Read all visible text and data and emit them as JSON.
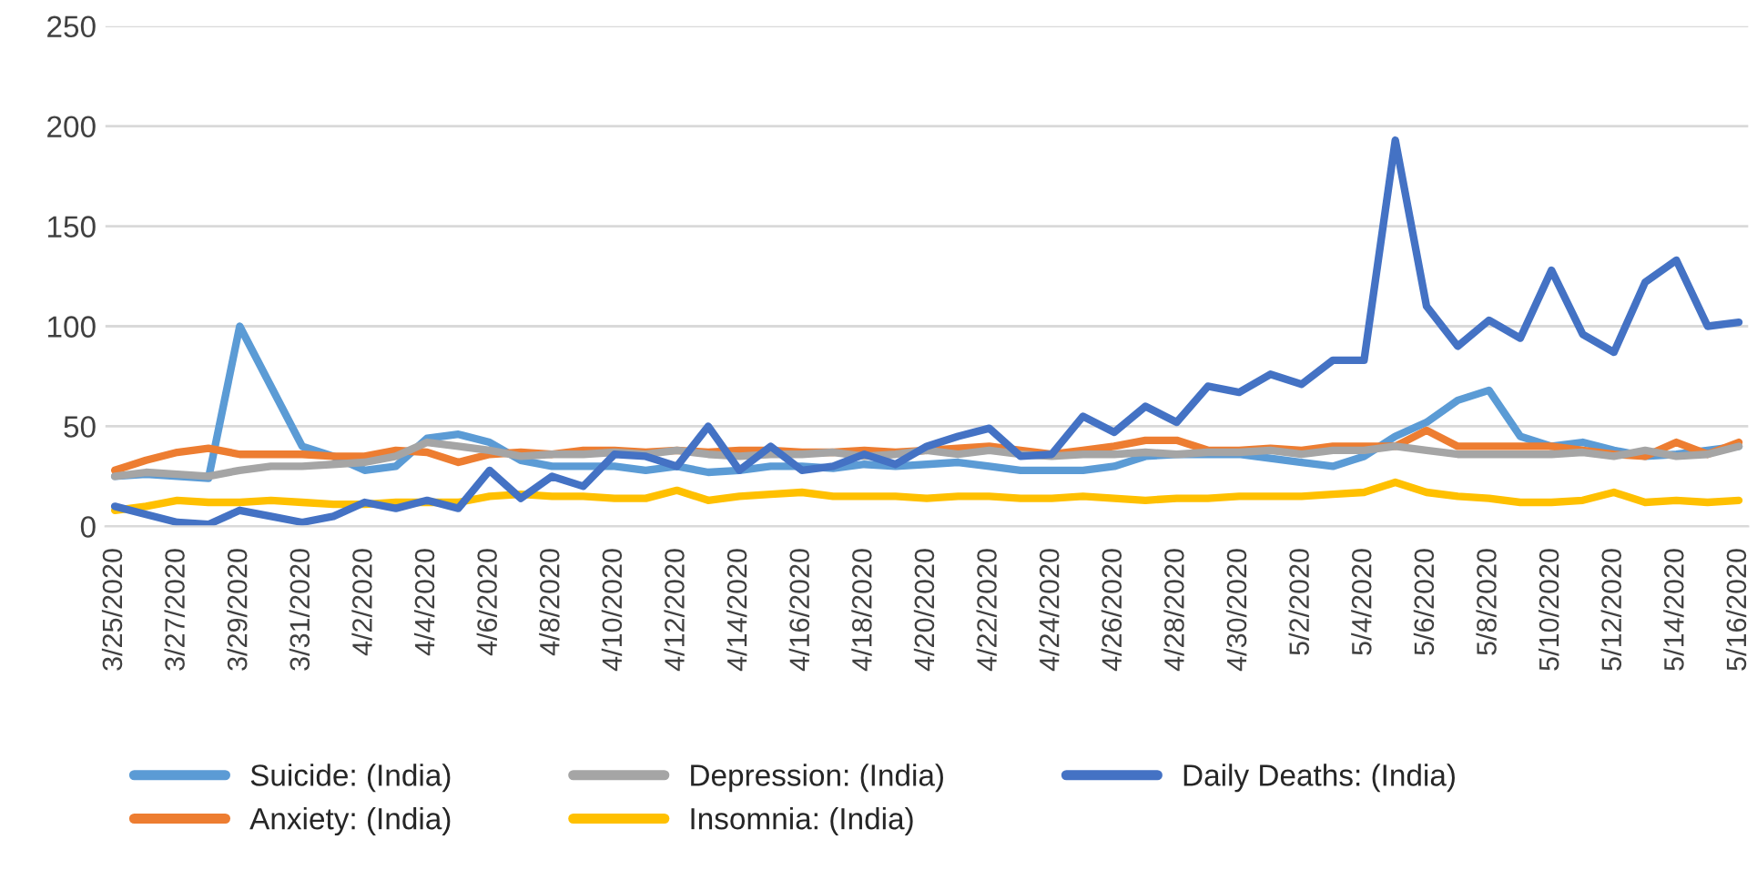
{
  "chart_data": {
    "type": "line",
    "categories": [
      "3/25/2020",
      null,
      "3/27/2020",
      null,
      "3/29/2020",
      null,
      "3/31/2020",
      null,
      "4/2/2020",
      null,
      "4/4/2020",
      null,
      "4/6/2020",
      null,
      "4/8/2020",
      null,
      "4/10/2020",
      null,
      "4/12/2020",
      null,
      "4/14/2020",
      null,
      "4/16/2020",
      null,
      "4/18/2020",
      null,
      "4/20/2020",
      null,
      "4/22/2020",
      null,
      "4/24/2020",
      null,
      "4/26/2020",
      null,
      "4/28/2020",
      null,
      "4/30/2020",
      null,
      "5/2/2020",
      null,
      "5/4/2020",
      null,
      "5/6/2020",
      null,
      "5/8/2020",
      null,
      "5/10/2020",
      null,
      "5/12/2020",
      null,
      "5/14/2020",
      null,
      "5/16/2020"
    ],
    "series": [
      {
        "name": "Suicide: (India)",
        "color": "#5b9bd5",
        "values": [
          25,
          26,
          25,
          24,
          100,
          70,
          40,
          35,
          28,
          30,
          44,
          46,
          42,
          33,
          30,
          30,
          30,
          28,
          30,
          27,
          28,
          30,
          30,
          29,
          31,
          30,
          31,
          32,
          30,
          28,
          28,
          28,
          30,
          35,
          36,
          36,
          36,
          34,
          32,
          30,
          35,
          45,
          52,
          63,
          68,
          45,
          40,
          42,
          38,
          35,
          36,
          38,
          40
        ]
      },
      {
        "name": "Anxiety: (India)",
        "color": "#ed7d31",
        "values": [
          28,
          33,
          37,
          39,
          36,
          36,
          36,
          35,
          35,
          38,
          37,
          32,
          36,
          37,
          36,
          38,
          38,
          37,
          38,
          37,
          38,
          38,
          37,
          37,
          38,
          37,
          38,
          39,
          40,
          38,
          36,
          38,
          40,
          43,
          43,
          38,
          38,
          39,
          38,
          40,
          40,
          40,
          48,
          40,
          40,
          40,
          40,
          38,
          36,
          35,
          42,
          36,
          42
        ]
      },
      {
        "name": "Depression: (India)",
        "color": "#a5a5a5",
        "values": [
          25,
          27,
          26,
          25,
          28,
          30,
          30,
          31,
          32,
          35,
          42,
          40,
          38,
          35,
          36,
          36,
          37,
          36,
          38,
          36,
          35,
          36,
          36,
          37,
          35,
          36,
          38,
          36,
          38,
          36,
          35,
          36,
          36,
          37,
          36,
          37,
          37,
          38,
          36,
          38,
          38,
          40,
          38,
          36,
          36,
          36,
          36,
          37,
          35,
          38,
          35,
          36,
          40
        ]
      },
      {
        "name": "Insomnia: (India)",
        "color": "#ffc000",
        "values": [
          8,
          10,
          13,
          12,
          12,
          13,
          12,
          11,
          11,
          12,
          12,
          12,
          15,
          16,
          15,
          15,
          14,
          14,
          18,
          13,
          15,
          16,
          17,
          15,
          15,
          15,
          14,
          15,
          15,
          14,
          14,
          15,
          14,
          13,
          14,
          14,
          15,
          15,
          15,
          16,
          17,
          22,
          17,
          15,
          14,
          12,
          12,
          13,
          17,
          12,
          13,
          12,
          13
        ]
      },
      {
        "name": "Daily Deaths: (India)",
        "color": "#4472c4",
        "values": [
          10,
          6,
          2,
          1,
          8,
          5,
          2,
          5,
          12,
          9,
          13,
          9,
          28,
          14,
          25,
          20,
          36,
          35,
          30,
          50,
          28,
          40,
          28,
          30,
          36,
          31,
          40,
          45,
          49,
          35,
          36,
          55,
          47,
          60,
          52,
          70,
          67,
          76,
          71,
          83,
          83,
          193,
          110,
          90,
          103,
          94,
          128,
          96,
          87,
          122,
          133,
          100,
          102
        ]
      }
    ],
    "ylim": [
      0,
      250
    ],
    "yticks": [
      0,
      50,
      100,
      150,
      200,
      250
    ],
    "grid": "y",
    "legend": "bottom"
  }
}
